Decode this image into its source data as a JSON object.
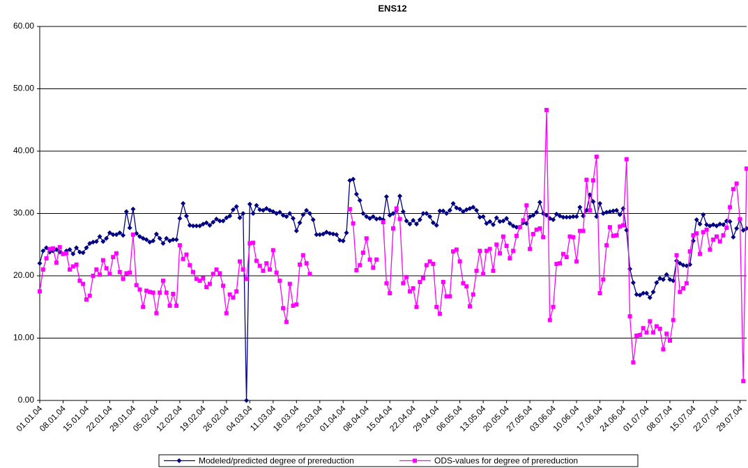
{
  "chart_data": {
    "type": "line",
    "title": "ENS12",
    "categories": [
      "01.01.04",
      null,
      null,
      null,
      null,
      null,
      null,
      "08.01.04",
      null,
      null,
      null,
      null,
      null,
      null,
      "15.01.04",
      null,
      null,
      null,
      null,
      null,
      null,
      "22.01.04",
      null,
      null,
      null,
      null,
      null,
      null,
      "29.01.04",
      null,
      null,
      null,
      null,
      null,
      null,
      "05.02.04",
      null,
      null,
      null,
      null,
      null,
      null,
      "12.02.04",
      null,
      null,
      null,
      null,
      null,
      null,
      "19.02.04",
      null,
      null,
      null,
      null,
      null,
      null,
      "26.02.04",
      null,
      null,
      null,
      null,
      null,
      null,
      "04.03.04",
      null,
      null,
      null,
      null,
      null,
      null,
      "11.03.04",
      null,
      null,
      null,
      null,
      null,
      null,
      "18.03.04",
      null,
      null,
      null,
      null,
      null,
      null,
      "25.03.04",
      null,
      null,
      null,
      null,
      null,
      null,
      "01.04.04",
      null,
      null,
      null,
      null,
      null,
      null,
      "08.04.04",
      null,
      null,
      null,
      null,
      null,
      null,
      "15.04.04",
      null,
      null,
      null,
      null,
      null,
      null,
      "22.04.04",
      null,
      null,
      null,
      null,
      null,
      null,
      "29.04.04",
      null,
      null,
      null,
      null,
      null,
      null,
      "06.05.04",
      null,
      null,
      null,
      null,
      null,
      null,
      "13.05.04",
      null,
      null,
      null,
      null,
      null,
      null,
      "20.05.04",
      null,
      null,
      null,
      null,
      null,
      null,
      "27.05.04",
      null,
      null,
      null,
      null,
      null,
      null,
      "03.06.04",
      null,
      null,
      null,
      null,
      null,
      null,
      "10.06.04",
      null,
      null,
      null,
      null,
      null,
      null,
      "17.06.04",
      null,
      null,
      null,
      null,
      null,
      null,
      "24.06.04",
      null,
      null,
      null,
      null,
      null,
      null,
      "01.07.04",
      null,
      null,
      null,
      null,
      null,
      null,
      "08.07.04",
      null,
      null,
      null,
      null,
      null,
      null,
      "15.07.04",
      null,
      null,
      null,
      null,
      null,
      null,
      "22.07.04",
      null,
      null,
      null,
      null,
      null,
      null,
      "29.07.04",
      null,
      null
    ],
    "series": [
      {
        "name": "Modeled/predicted degree of prereduction",
        "color": "#000080",
        "marker": "diamond",
        "values": [
          22,
          24,
          24.5,
          23.8,
          24,
          24.2,
          23.8,
          23.5,
          24,
          24.2,
          23.5,
          24.5,
          23.8,
          23.7,
          24.5,
          25.2,
          25.4,
          25.5,
          26.3,
          25.5,
          26,
          26.9,
          26.6,
          26.6,
          26.9,
          26.5,
          30.3,
          27.7,
          30.7,
          26.8,
          26.3,
          26,
          25.8,
          25.4,
          25.6,
          26.7,
          26,
          25.2,
          26,
          25.6,
          25.8,
          25.8,
          29.2,
          31.6,
          29.6,
          28.1,
          28,
          28,
          28,
          28.3,
          28.5,
          28.1,
          28.6,
          29.1,
          28.8,
          28.8,
          29.3,
          29.6,
          30.6,
          31.1,
          29.3,
          30,
          0,
          31.5,
          30,
          31.3,
          30.6,
          30.5,
          30.8,
          30.5,
          30.3,
          30,
          30.2,
          29.7,
          29.5,
          30,
          29.2,
          27.2,
          28.5,
          29.8,
          30.5,
          30,
          29,
          26.6,
          26.6,
          26.7,
          27,
          26.8,
          26.7,
          26.6,
          25.7,
          25.6,
          26.9,
          35.3,
          35.5,
          33.1,
          32.1,
          30,
          29.5,
          29.2,
          29.5,
          29.1,
          29.2,
          29,
          32.7,
          29.7,
          30,
          30.5,
          32.8,
          30.3,
          28.8,
          28.3,
          28.9,
          28.3,
          29,
          30,
          30,
          29.5,
          28.5,
          28.1,
          30.4,
          30.4,
          30,
          30.5,
          31.6,
          30.9,
          30.7,
          30.3,
          30.6,
          30.8,
          31,
          30.5,
          29.4,
          29.5,
          28.4,
          28.7,
          28.2,
          29.3,
          28.7,
          28.8,
          29.2,
          28.4,
          28,
          27.8,
          27.8,
          28.5,
          28.4,
          29.5,
          29.7,
          30.2,
          31.8,
          30,
          29.7,
          29.2,
          29,
          29.9,
          29.6,
          29.4,
          29.4,
          29.4,
          29.5,
          29.5,
          31,
          29.6,
          30.5,
          33,
          31.9,
          29.5,
          31.6,
          30,
          30.2,
          30.3,
          30.4,
          30.5,
          29.8,
          30.8,
          27.3,
          21.1,
          18.9,
          17,
          16.9,
          17.2,
          17.2,
          16.5,
          17.4,
          18.9,
          19.6,
          19.4,
          20.2,
          19.4,
          19.2,
          22.4,
          22,
          21.7,
          21.6,
          21.8,
          25.6,
          29,
          28.3,
          29.8,
          28.2,
          28,
          28.2,
          28,
          28.3,
          28.2,
          28.8,
          28.7,
          26.2,
          27.6,
          29.1,
          27.3,
          27.6
        ]
      },
      {
        "name": "ODS-values for degree of prereduction",
        "color": "#ff00ff",
        "marker": "square",
        "values": [
          17.5,
          21,
          22.8,
          24.3,
          24.4,
          22.1,
          24.6,
          23.5,
          23.6,
          21,
          21.5,
          21.8,
          19.2,
          18.7,
          16.2,
          16.8,
          20,
          21,
          20.2,
          22.5,
          21.2,
          20.3,
          23,
          23.6,
          20.6,
          19.5,
          20.4,
          20.5,
          26.6,
          18.5,
          17.8,
          15,
          17.6,
          17.4,
          17.3,
          14,
          17.3,
          19.2,
          17.3,
          15.2,
          17.1,
          15.2,
          24.9,
          22.7,
          23.4,
          21.7,
          20.6,
          19.5,
          19.2,
          19.6,
          18.2,
          18.7,
          20.3,
          21,
          20.4,
          18.4,
          14,
          17,
          16.5,
          17.5,
          22.3,
          21,
          19.5,
          25.2,
          25.3,
          22.4,
          21.6,
          20.8,
          22,
          21,
          24.1,
          20.5,
          19.2,
          14.8,
          12.6,
          18.7,
          15.2,
          15.4,
          21.8,
          23.3,
          22,
          20.3,
          null,
          null,
          null,
          null,
          null,
          null,
          null,
          null,
          null,
          null,
          null,
          30.7,
          28.4,
          20.9,
          21.7,
          23.7,
          26,
          22.6,
          21.3,
          22.6,
          null,
          28.6,
          18.8,
          17.2,
          27.6,
          30.8,
          29.1,
          18.8,
          19.8,
          17.5,
          18,
          15,
          19,
          19.6,
          21.7,
          22.3,
          21.9,
          15,
          13.9,
          19,
          16.7,
          16.7,
          23.9,
          24.2,
          22.3,
          18.8,
          18.3,
          15.1,
          17,
          20.8,
          24,
          20.3,
          24,
          24.3,
          20.8,
          25,
          23.6,
          26.3,
          24.8,
          22.8,
          24,
          26.4,
          27.8,
          28.9,
          31.3,
          24.3,
          26.7,
          27.4,
          27.6,
          26.2,
          46.6,
          12.9,
          15,
          21.9,
          22,
          23.5,
          23,
          26.3,
          26.2,
          22.3,
          27.2,
          27.2,
          35.4,
          30.5,
          35.3,
          39.1,
          17.2,
          19.4,
          24.9,
          27.8,
          26.4,
          26.5,
          27.9,
          28.1,
          38.7,
          13.5,
          6.1,
          10.4,
          10.5,
          11.6,
          10.9,
          12.7,
          10.9,
          11.9,
          11.5,
          8.2,
          10.7,
          9.6,
          12.9,
          23.3,
          17.4,
          18,
          18.8,
          23.9,
          26.5,
          26.8,
          23.5,
          27,
          27.4,
          24.2,
          25.8,
          26.3,
          25.5,
          26.5,
          27.7,
          31,
          33.9,
          34.8,
          29.1,
          3.1,
          37.2
        ]
      }
    ],
    "ylim": [
      0,
      60
    ],
    "yticks": [
      {
        "value": 0,
        "label": "0.00"
      },
      {
        "value": 10,
        "label": "10.00"
      },
      {
        "value": 20,
        "label": "20.00"
      },
      {
        "value": 30,
        "label": "30.00"
      },
      {
        "value": 40,
        "label": "40.00"
      },
      {
        "value": 50,
        "label": "50.00"
      },
      {
        "value": 60,
        "label": "60.00"
      }
    ],
    "grid": true,
    "legend": "bottom"
  }
}
